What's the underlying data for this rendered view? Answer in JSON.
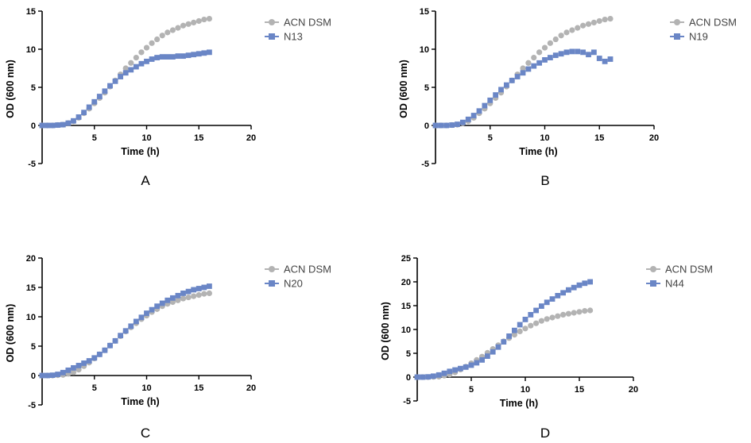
{
  "colors": {
    "reference": "#b3b3b3",
    "strain": "#6a86c6",
    "axis": "#000000"
  },
  "chart_data": [
    {
      "type": "scatter",
      "panel_label": "A",
      "xlabel": "Time (h)",
      "ylabel": "OD (600 nm)",
      "xlim": [
        0,
        20
      ],
      "ylim": [
        -5,
        15
      ],
      "xticks": [
        "5",
        "10",
        "15",
        "20"
      ],
      "yticks": [
        "-5",
        "0",
        "5",
        "10",
        "15"
      ],
      "legend_position": "top-right",
      "series": [
        {
          "name": "ACN DSM",
          "marker": "circle",
          "color": "#b3b3b3",
          "x": [
            0,
            0.5,
            1,
            1.5,
            2,
            2.5,
            3,
            3.5,
            4,
            4.5,
            5,
            5.5,
            6,
            6.5,
            7,
            7.5,
            8,
            8.5,
            9,
            9.5,
            10,
            10.5,
            11,
            11.5,
            12,
            12.5,
            13,
            13.5,
            14,
            14.5,
            15,
            15.5,
            16
          ],
          "y": [
            0,
            0,
            0,
            0.05,
            0.1,
            0.3,
            0.55,
            1.0,
            1.6,
            2.2,
            2.9,
            3.6,
            4.3,
            5.1,
            5.9,
            6.7,
            7.5,
            8.2,
            8.9,
            9.6,
            10.2,
            10.8,
            11.3,
            11.8,
            12.2,
            12.5,
            12.8,
            13.1,
            13.3,
            13.5,
            13.7,
            13.9,
            14.0
          ]
        },
        {
          "name": "N13",
          "marker": "square",
          "color": "#6a86c6",
          "x": [
            0,
            0.5,
            1,
            1.5,
            2,
            2.5,
            3,
            3.5,
            4,
            4.5,
            5,
            5.5,
            6,
            6.5,
            7,
            7.5,
            8,
            8.5,
            9,
            9.5,
            10,
            10.5,
            11,
            11.5,
            12,
            12.5,
            13,
            13.5,
            14,
            14.5,
            15,
            15.5,
            16
          ],
          "y": [
            0,
            0,
            0,
            0.05,
            0.1,
            0.3,
            0.6,
            1.1,
            1.7,
            2.4,
            3.1,
            3.8,
            4.5,
            5.2,
            5.8,
            6.4,
            6.9,
            7.3,
            7.7,
            8.1,
            8.4,
            8.7,
            8.9,
            9.0,
            9.0,
            9.0,
            9.1,
            9.1,
            9.2,
            9.3,
            9.4,
            9.5,
            9.6
          ]
        }
      ]
    },
    {
      "type": "scatter",
      "panel_label": "B",
      "xlabel": "Time (h)",
      "ylabel": "OD (600 nm)",
      "xlim": [
        0,
        20
      ],
      "ylim": [
        -5,
        15
      ],
      "xticks": [
        "5",
        "10",
        "15",
        "20"
      ],
      "yticks": [
        "-5",
        "0",
        "5",
        "10",
        "15"
      ],
      "legend_position": "top-right",
      "series": [
        {
          "name": "ACN DSM",
          "marker": "circle",
          "color": "#b3b3b3",
          "x": [
            0,
            0.5,
            1,
            1.5,
            2,
            2.5,
            3,
            3.5,
            4,
            4.5,
            5,
            5.5,
            6,
            6.5,
            7,
            7.5,
            8,
            8.5,
            9,
            9.5,
            10,
            10.5,
            11,
            11.5,
            12,
            12.5,
            13,
            13.5,
            14,
            14.5,
            15,
            15.5,
            16
          ],
          "y": [
            0,
            0,
            0,
            0.05,
            0.1,
            0.3,
            0.55,
            1.0,
            1.6,
            2.2,
            2.9,
            3.6,
            4.3,
            5.1,
            5.9,
            6.7,
            7.5,
            8.2,
            8.9,
            9.6,
            10.2,
            10.8,
            11.3,
            11.8,
            12.2,
            12.5,
            12.8,
            13.1,
            13.3,
            13.5,
            13.7,
            13.9,
            14.0
          ]
        },
        {
          "name": "N19",
          "marker": "square",
          "color": "#6a86c6",
          "x": [
            0,
            0.5,
            1,
            1.5,
            2,
            2.5,
            3,
            3.5,
            4,
            4.5,
            5,
            5.5,
            6,
            6.5,
            7,
            7.5,
            8,
            8.5,
            9,
            9.5,
            10,
            10.5,
            11,
            11.5,
            12,
            12.5,
            13,
            13.5,
            14,
            14.5,
            15,
            15.5,
            16
          ],
          "y": [
            0,
            0,
            0,
            0.05,
            0.15,
            0.4,
            0.8,
            1.3,
            1.9,
            2.6,
            3.3,
            4.0,
            4.7,
            5.3,
            5.9,
            6.4,
            6.9,
            7.4,
            7.8,
            8.2,
            8.6,
            8.9,
            9.2,
            9.4,
            9.6,
            9.7,
            9.7,
            9.6,
            9.3,
            9.6,
            8.8,
            8.4,
            8.7
          ]
        }
      ]
    },
    {
      "type": "scatter",
      "panel_label": "C",
      "xlabel": "Time (h)",
      "ylabel": "OD (600 nm)",
      "xlim": [
        0,
        20
      ],
      "ylim": [
        -5,
        20
      ],
      "xticks": [
        "5",
        "10",
        "15",
        "20"
      ],
      "yticks": [
        "-5",
        "0",
        "5",
        "10",
        "15",
        "20"
      ],
      "legend_position": "top-right",
      "series": [
        {
          "name": "ACN DSM",
          "marker": "circle",
          "color": "#b3b3b3",
          "x": [
            0,
            0.5,
            1,
            1.5,
            2,
            2.5,
            3,
            3.5,
            4,
            4.5,
            5,
            5.5,
            6,
            6.5,
            7,
            7.5,
            8,
            8.5,
            9,
            9.5,
            10,
            10.5,
            11,
            11.5,
            12,
            12.5,
            13,
            13.5,
            14,
            14.5,
            15,
            15.5,
            16
          ],
          "y": [
            0,
            0,
            0,
            0.05,
            0.1,
            0.3,
            0.55,
            1.0,
            1.6,
            2.2,
            2.9,
            3.6,
            4.3,
            5.1,
            5.9,
            6.7,
            7.5,
            8.2,
            8.9,
            9.6,
            10.2,
            10.8,
            11.3,
            11.8,
            12.2,
            12.5,
            12.8,
            13.1,
            13.3,
            13.5,
            13.7,
            13.9,
            14.0
          ]
        },
        {
          "name": "N20",
          "marker": "square",
          "color": "#6a86c6",
          "x": [
            0,
            0.5,
            1,
            1.5,
            2,
            2.5,
            3,
            3.5,
            4,
            4.5,
            5,
            5.5,
            6,
            6.5,
            7,
            7.5,
            8,
            8.5,
            9,
            9.5,
            10,
            10.5,
            11,
            11.5,
            12,
            12.5,
            13,
            13.5,
            14,
            14.5,
            15,
            15.5,
            16
          ],
          "y": [
            0,
            0,
            0.05,
            0.2,
            0.5,
            0.9,
            1.3,
            1.7,
            2.1,
            2.5,
            3.0,
            3.6,
            4.3,
            5.1,
            5.9,
            6.8,
            7.6,
            8.4,
            9.2,
            9.9,
            10.6,
            11.2,
            11.8,
            12.3,
            12.8,
            13.2,
            13.6,
            14.0,
            14.3,
            14.6,
            14.8,
            15.0,
            15.2
          ]
        }
      ]
    },
    {
      "type": "scatter",
      "panel_label": "D",
      "xlabel": "Time (h)",
      "ylabel": "OD (600 nm)",
      "xlim": [
        0,
        20
      ],
      "ylim": [
        -5,
        25
      ],
      "xticks": [
        "5",
        "10",
        "15",
        "20"
      ],
      "yticks": [
        "-5",
        "0",
        "5",
        "10",
        "15",
        "20",
        "25"
      ],
      "legend_position": "top-right",
      "series": [
        {
          "name": "ACN DSM",
          "marker": "circle",
          "color": "#b3b3b3",
          "x": [
            0,
            0.5,
            1,
            1.5,
            2,
            2.5,
            3,
            3.5,
            4,
            4.5,
            5,
            5.5,
            6,
            6.5,
            7,
            7.5,
            8,
            8.5,
            9,
            9.5,
            10,
            10.5,
            11,
            11.5,
            12,
            12.5,
            13,
            13.5,
            14,
            14.5,
            15,
            15.5,
            16
          ],
          "y": [
            0,
            0,
            0,
            0.05,
            0.1,
            0.3,
            0.55,
            1.0,
            1.6,
            2.2,
            2.9,
            3.6,
            4.3,
            5.1,
            5.9,
            6.7,
            7.5,
            8.2,
            8.9,
            9.6,
            10.2,
            10.8,
            11.3,
            11.8,
            12.2,
            12.5,
            12.8,
            13.1,
            13.3,
            13.5,
            13.7,
            13.9,
            14.0
          ]
        },
        {
          "name": "N44",
          "marker": "square",
          "color": "#6a86c6",
          "x": [
            0,
            0.5,
            1,
            1.5,
            2,
            2.5,
            3,
            3.5,
            4,
            4.5,
            5,
            5.5,
            6,
            6.5,
            7,
            7.5,
            8,
            8.5,
            9,
            9.5,
            10,
            10.5,
            11,
            11.5,
            12,
            12.5,
            13,
            13.5,
            14,
            14.5,
            15,
            15.5,
            16
          ],
          "y": [
            0,
            0,
            0.05,
            0.2,
            0.45,
            0.8,
            1.2,
            1.5,
            1.8,
            2.1,
            2.5,
            3.0,
            3.6,
            4.4,
            5.3,
            6.3,
            7.4,
            8.6,
            9.8,
            11.0,
            12.1,
            13.1,
            14.0,
            14.9,
            15.7,
            16.4,
            17.1,
            17.7,
            18.3,
            18.8,
            19.3,
            19.7,
            20.0
          ]
        }
      ]
    }
  ]
}
